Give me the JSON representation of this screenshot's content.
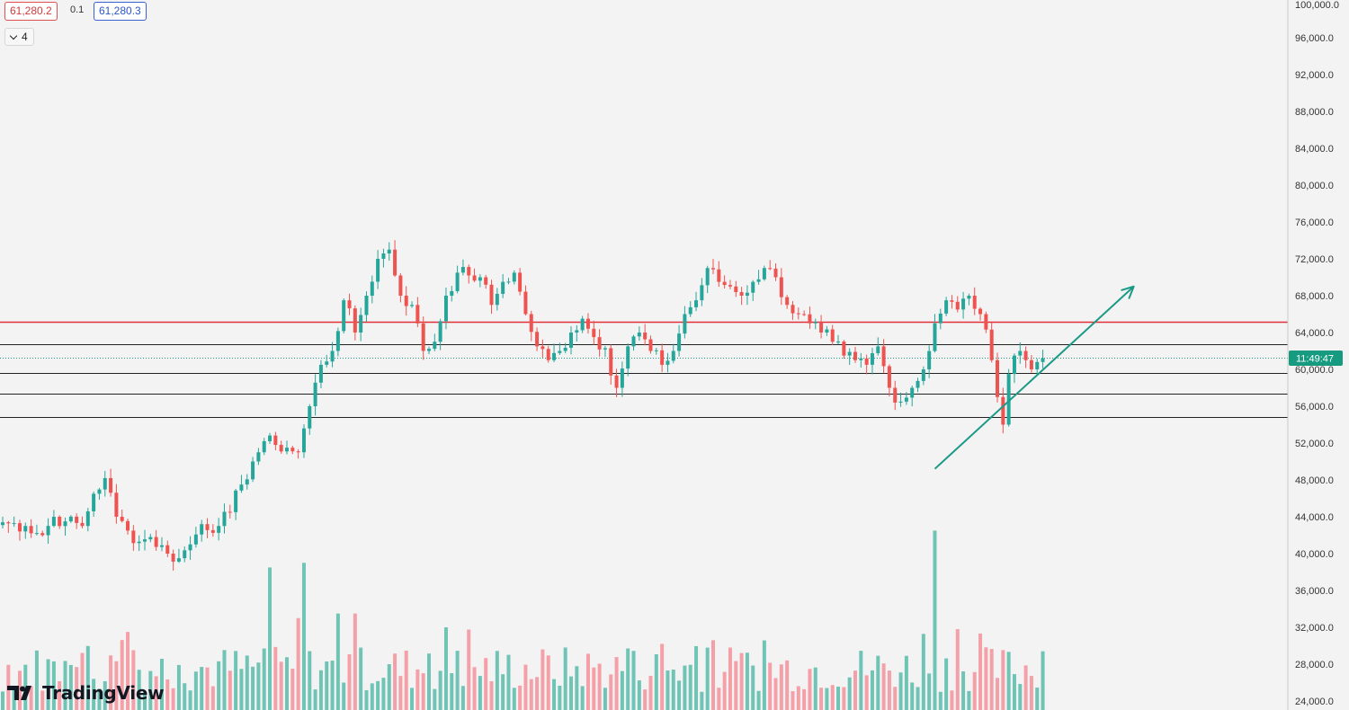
{
  "header": {
    "bid": "61,280.2",
    "spread": "0.1",
    "ask": "61,280.3",
    "indicators_count": "4"
  },
  "brand": {
    "name": "TradingView"
  },
  "colors": {
    "bull": "#26a69a",
    "bear": "#ef5350",
    "bull_volume": "#6fc4b6",
    "bear_volume": "#f4a0a8",
    "resistance_line": "#e0303a",
    "level_line": "#222222",
    "arrow": "#1a9a86",
    "price_tag": "#169b80"
  },
  "chart_data": {
    "type": "candlestick",
    "y_axis": {
      "ticks": [
        24000,
        28000,
        32000,
        36000,
        40000,
        44000,
        48000,
        52000,
        56000,
        60000,
        64000,
        68000,
        72000,
        76000,
        80000,
        84000,
        88000,
        92000,
        96000,
        100000
      ],
      "tick_labels": [
        "24,000.0",
        "28,000.0",
        "32,000.0",
        "36,000.0",
        "40,000.0",
        "44,000.0",
        "48,000.0",
        "52,000.0",
        "56,000.0",
        "60,000.0",
        "64,000.0",
        "68,000.0",
        "72,000.0",
        "76,000.0",
        "80,000.0",
        "84,000.0",
        "88,000.0",
        "92,000.0",
        "96,000.0",
        "100,000.0"
      ],
      "range": [
        24000,
        100000
      ]
    },
    "current_price_tag": {
      "label": "11:49:47",
      "value": 61280
    },
    "horizontal_levels": [
      {
        "value": 65200,
        "color": "resistance"
      },
      {
        "value": 62700,
        "color": "level"
      },
      {
        "value": 59600,
        "color": "level"
      },
      {
        "value": 57400,
        "color": "level"
      },
      {
        "value": 54800,
        "color": "level"
      }
    ],
    "trend_arrow": {
      "from_bar": 164,
      "from_price": 49200,
      "to_bar": 199,
      "to_price": 69000
    },
    "anchors": [
      [
        0,
        43400
      ],
      [
        4,
        43000
      ],
      [
        7,
        42000
      ],
      [
        9,
        44000
      ],
      [
        11,
        43500
      ],
      [
        14,
        43000
      ],
      [
        16,
        46500
      ],
      [
        18,
        48200
      ],
      [
        20,
        44000
      ],
      [
        22,
        42500
      ],
      [
        24,
        41300
      ],
      [
        26,
        41800
      ],
      [
        29,
        40000
      ],
      [
        31,
        39500
      ],
      [
        33,
        41000
      ],
      [
        35,
        43200
      ],
      [
        38,
        43000
      ],
      [
        40,
        44500
      ],
      [
        42,
        47500
      ],
      [
        44,
        50000
      ],
      [
        46,
        52200
      ],
      [
        48,
        51800
      ],
      [
        50,
        51500
      ],
      [
        52,
        51000
      ],
      [
        54,
        56000
      ],
      [
        56,
        60500
      ],
      [
        58,
        62000
      ],
      [
        60,
        67500
      ],
      [
        62,
        64000
      ],
      [
        64,
        68000
      ],
      [
        66,
        72000
      ],
      [
        68,
        73000
      ],
      [
        70,
        68000
      ],
      [
        72,
        67000
      ],
      [
        74,
        62000
      ],
      [
        76,
        63000
      ],
      [
        78,
        68000
      ],
      [
        80,
        70500
      ],
      [
        82,
        70200
      ],
      [
        84,
        70000
      ],
      [
        86,
        67000
      ],
      [
        88,
        69500
      ],
      [
        90,
        70500
      ],
      [
        92,
        66000
      ],
      [
        94,
        62500
      ],
      [
        96,
        61000
      ],
      [
        98,
        62000
      ],
      [
        100,
        64000
      ],
      [
        102,
        65500
      ],
      [
        104,
        63500
      ],
      [
        106,
        62300
      ],
      [
        108,
        58000
      ],
      [
        110,
        62500
      ],
      [
        112,
        64000
      ],
      [
        114,
        62000
      ],
      [
        116,
        60500
      ],
      [
        118,
        62000
      ],
      [
        120,
        66000
      ],
      [
        122,
        67500
      ],
      [
        124,
        71000
      ],
      [
        126,
        69500
      ],
      [
        128,
        69000
      ],
      [
        130,
        68000
      ],
      [
        132,
        69500
      ],
      [
        134,
        71000
      ],
      [
        136,
        70000
      ],
      [
        138,
        67000
      ],
      [
        140,
        66000
      ],
      [
        142,
        65000
      ],
      [
        144,
        64000
      ],
      [
        146,
        63000
      ],
      [
        148,
        61500
      ],
      [
        150,
        61000
      ],
      [
        152,
        60500
      ],
      [
        154,
        62500
      ],
      [
        156,
        58000
      ],
      [
        158,
        56500
      ],
      [
        160,
        58000
      ],
      [
        162,
        60000
      ],
      [
        164,
        65000
      ],
      [
        166,
        67500
      ],
      [
        168,
        66500
      ],
      [
        170,
        68000
      ],
      [
        172,
        66000
      ],
      [
        174,
        61000
      ],
      [
        175,
        57000
      ],
      [
        176,
        54000
      ],
      [
        177,
        59500
      ],
      [
        178,
        61500
      ],
      [
        179,
        62000
      ],
      [
        180,
        61000
      ],
      [
        181,
        60000
      ],
      [
        182,
        60800
      ],
      [
        183,
        61200
      ]
    ],
    "volume": {
      "avg_range": [
        25000,
        30000
      ],
      "spikes": [
        [
          22,
          31500
        ],
        [
          47,
          38500
        ],
        [
          52,
          33000
        ],
        [
          53,
          39000
        ],
        [
          59,
          33500
        ],
        [
          62,
          33500
        ],
        [
          168,
          31800
        ],
        [
          168,
          31800
        ],
        [
          164,
          42500
        ]
      ]
    }
  }
}
